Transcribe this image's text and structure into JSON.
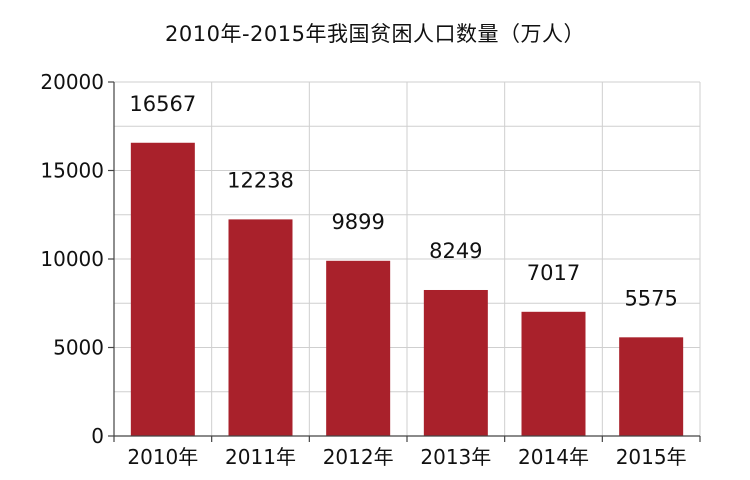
{
  "chart_data": {
    "type": "bar",
    "title": "2010年-2015年我国贫困人口数量（万人）",
    "categories": [
      "2010年",
      "2011年",
      "2012年",
      "2013年",
      "2014年",
      "2015年"
    ],
    "values": [
      16567,
      12238,
      9899,
      8249,
      7017,
      5575
    ],
    "data_labels": [
      "16567",
      "12238",
      "9899",
      "8249",
      "7017",
      "5575"
    ],
    "y_ticks": [
      0,
      5000,
      10000,
      15000,
      20000
    ],
    "y_tick_labels": [
      "0",
      "5000",
      "10000",
      "15000",
      "20000"
    ],
    "ylim": [
      0,
      20000
    ],
    "grid": true,
    "bar_color": "#a9212b",
    "xlabel": "",
    "ylabel": ""
  }
}
